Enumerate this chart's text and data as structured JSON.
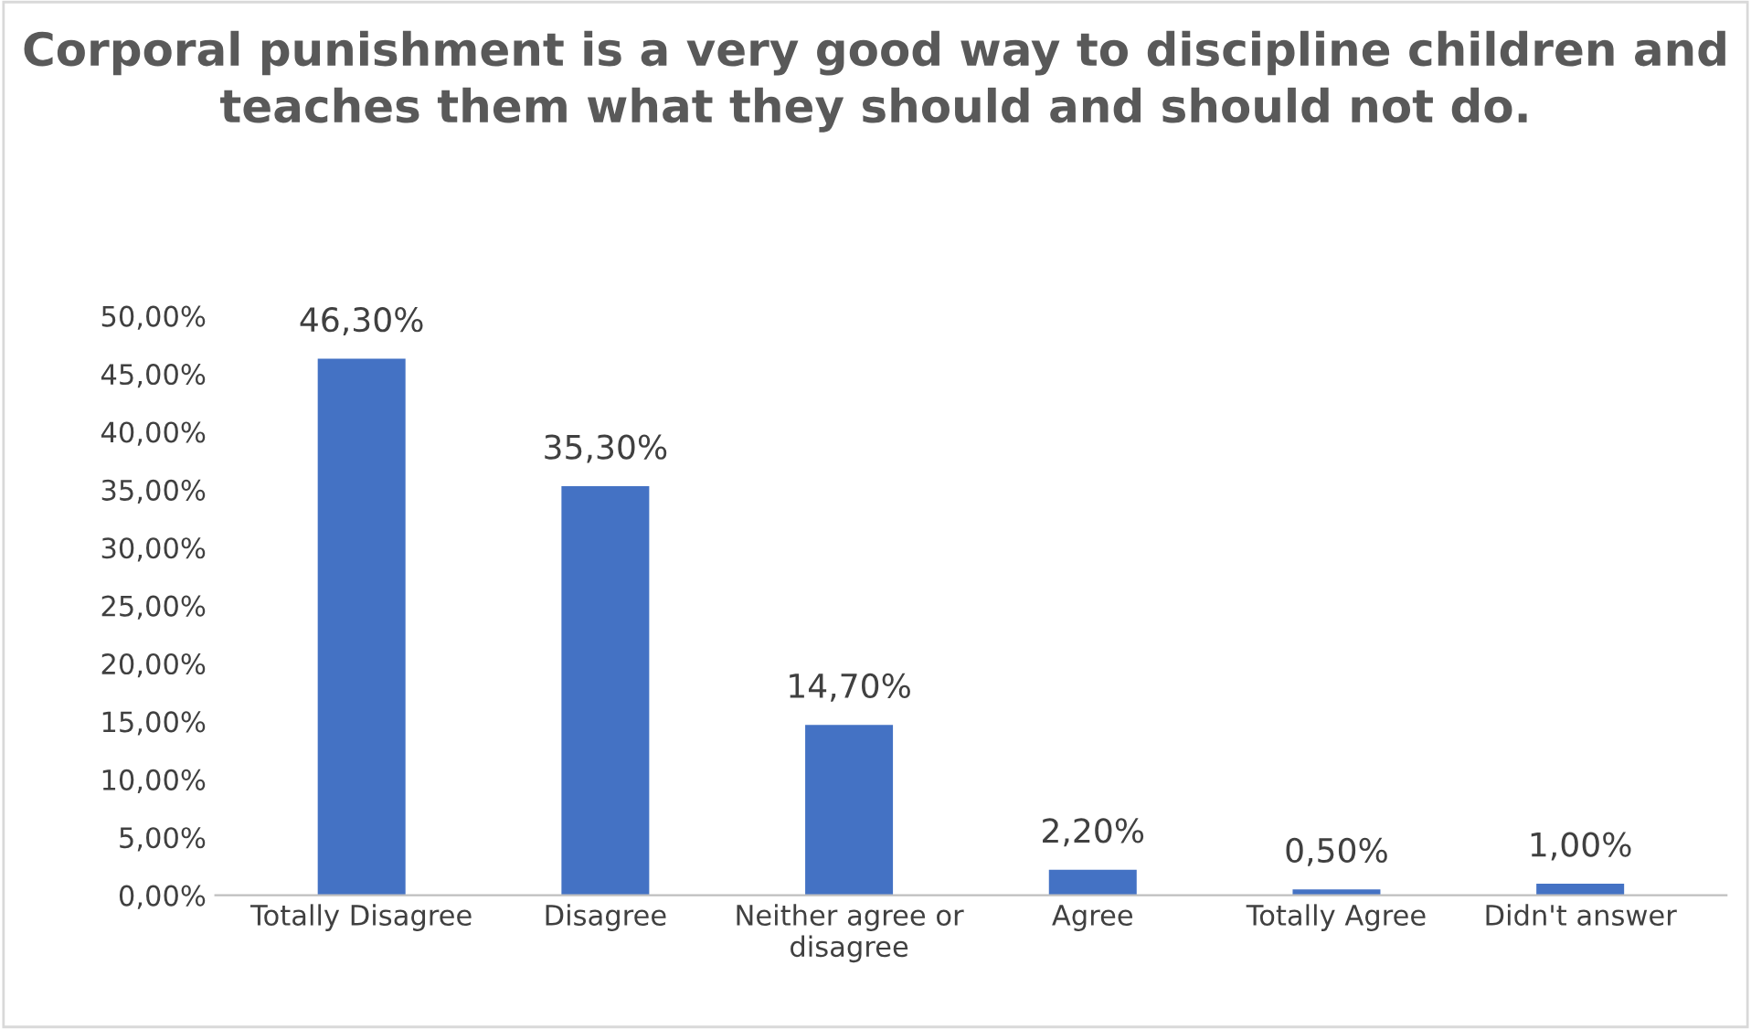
{
  "chart_data": {
    "type": "bar",
    "title": "Corporal punishment is a very good way to discipline children and teaches them what they should and should not do.",
    "categories": [
      "Totally Disagree",
      "Disagree",
      "Neither agree or disagree",
      "Agree",
      "Totally Agree",
      "Didn't answer"
    ],
    "values": [
      46.3,
      35.3,
      14.7,
      2.2,
      0.5,
      1.0
    ],
    "value_labels": [
      "46,30%",
      "35,30%",
      "14,70%",
      "2,20%",
      "0,50%",
      "1,00%"
    ],
    "color": "#4472c4",
    "ylim": [
      0,
      50
    ],
    "yticks": [
      {
        "value": 0,
        "label": "0,00%"
      },
      {
        "value": 5,
        "label": "5,00%"
      },
      {
        "value": 10,
        "label": "10,00%"
      },
      {
        "value": 15,
        "label": "15,00%"
      },
      {
        "value": 20,
        "label": "20,00%"
      },
      {
        "value": 25,
        "label": "25,00%"
      },
      {
        "value": 30,
        "label": "30,00%"
      },
      {
        "value": 35,
        "label": "35,00%"
      },
      {
        "value": 40,
        "label": "40,00%"
      },
      {
        "value": 45,
        "label": "45,00%"
      },
      {
        "value": 50,
        "label": "50,00%"
      }
    ],
    "grid": false
  }
}
